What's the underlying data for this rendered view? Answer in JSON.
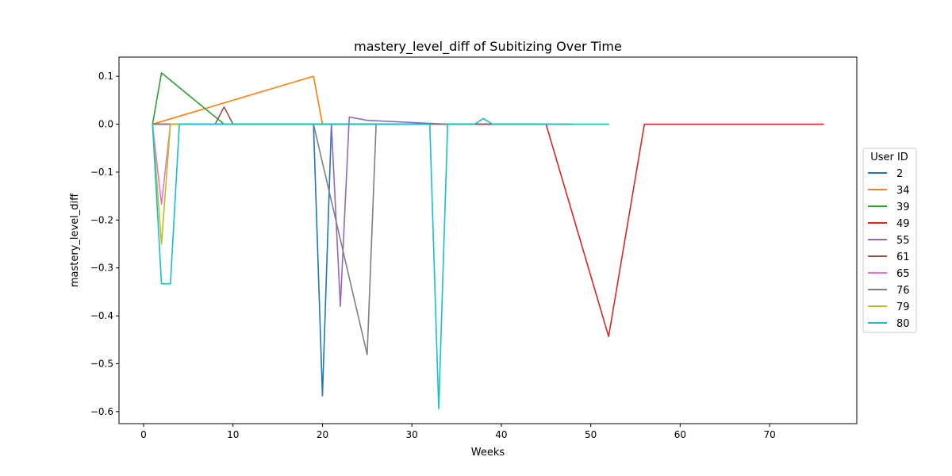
{
  "chart_data": {
    "type": "line",
    "title": "mastery_level_diff of Subitizing Over Time",
    "xlabel": "Weeks",
    "ylabel": "mastery_level_diff",
    "xlim": [
      -2.75,
      79.75
    ],
    "ylim": [
      -0.625,
      0.14
    ],
    "xticks": [
      0,
      10,
      20,
      30,
      40,
      50,
      60,
      70
    ],
    "yticks": [
      0.1,
      0.0,
      -0.1,
      -0.2,
      -0.3,
      -0.4,
      -0.5,
      -0.6
    ],
    "grid": false,
    "legend": {
      "title": "User ID",
      "placement": "right"
    },
    "series": [
      {
        "name": "2",
        "color": "#1f77b4",
        "x": [
          1,
          19,
          20,
          21,
          22,
          48
        ],
        "y": [
          0,
          0,
          -0.567,
          0,
          0,
          0
        ]
      },
      {
        "name": "34",
        "color": "#ff7f0e",
        "x": [
          1,
          19,
          20,
          21
        ],
        "y": [
          0,
          0.1,
          0,
          0
        ]
      },
      {
        "name": "39",
        "color": "#2ca02c",
        "x": [
          1,
          2,
          9,
          10
        ],
        "y": [
          0,
          0.107,
          0,
          0
        ]
      },
      {
        "name": "49",
        "color": "#d62728",
        "x": [
          1,
          10,
          20,
          30,
          45,
          52,
          56,
          60,
          70,
          76
        ],
        "y": [
          0,
          0,
          0,
          0,
          0,
          -0.443,
          0,
          0,
          0,
          0
        ]
      },
      {
        "name": "55",
        "color": "#9467bd",
        "x": [
          1,
          10,
          21,
          22,
          23,
          25,
          34
        ],
        "y": [
          0,
          0,
          0,
          -0.38,
          0.015,
          0.008,
          0
        ]
      },
      {
        "name": "61",
        "color": "#8c564b",
        "x": [
          1,
          8,
          9,
          10,
          20,
          40,
          44
        ],
        "y": [
          0,
          0,
          0.036,
          0,
          0,
          0,
          0
        ]
      },
      {
        "name": "65",
        "color": "#e377c2",
        "x": [
          1,
          2,
          3,
          4,
          10
        ],
        "y": [
          0,
          -0.167,
          0,
          0,
          0
        ]
      },
      {
        "name": "76",
        "color": "#7f7f7f",
        "x": [
          1,
          19,
          25,
          26,
          36
        ],
        "y": [
          0,
          0,
          -0.481,
          0,
          0
        ]
      },
      {
        "name": "79",
        "color": "#bcbd22",
        "x": [
          1,
          2,
          3,
          10
        ],
        "y": [
          0,
          -0.25,
          0,
          0
        ]
      },
      {
        "name": "80",
        "color": "#17becf",
        "x": [
          1,
          2,
          3,
          4,
          32,
          33,
          34,
          37,
          38,
          39,
          52
        ],
        "y": [
          0,
          -0.333,
          -0.333,
          0,
          0,
          -0.594,
          0,
          0,
          0.012,
          0,
          0
        ]
      }
    ]
  }
}
